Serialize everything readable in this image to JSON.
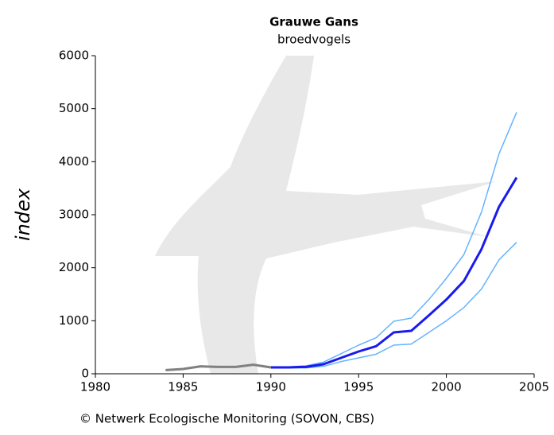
{
  "chart_data": {
    "type": "line",
    "title": "Grauwe Gans",
    "subtitle": "broedvogels",
    "y_label": "index",
    "footer": "© Netwerk Ecologische Monitoring (SOVON, CBS)",
    "x": [
      1984,
      1985,
      1986,
      1987,
      1988,
      1989,
      1990,
      1991,
      1992,
      1993,
      1994,
      1995,
      1996,
      1997,
      1998,
      1999,
      2000,
      2001,
      2002,
      2003,
      2004
    ],
    "series": [
      {
        "color": "#808080",
        "width": 3,
        "values": [
          70,
          90,
          140,
          130,
          130,
          170,
          120,
          null,
          null,
          null,
          null,
          null,
          null,
          null,
          null,
          null,
          null,
          null,
          null,
          null,
          null
        ]
      },
      {
        "color": "#66b3ff",
        "width": 1.5,
        "values": [
          null,
          null,
          null,
          null,
          null,
          null,
          120,
          130,
          150,
          220,
          380,
          540,
          680,
          990,
          1050,
          1400,
          1800,
          2250,
          3050,
          4150,
          4930
        ]
      },
      {
        "color": "#66b3ff",
        "width": 1.5,
        "values": [
          null,
          null,
          null,
          null,
          null,
          null,
          110,
          110,
          110,
          140,
          230,
          300,
          370,
          540,
          560,
          780,
          1000,
          1250,
          1600,
          2150,
          2480
        ]
      },
      {
        "color": "#1a1aee",
        "width": 3,
        "values": [
          null,
          null,
          null,
          null,
          null,
          null,
          120,
          120,
          130,
          180,
          300,
          420,
          520,
          780,
          810,
          1100,
          1400,
          1750,
          2350,
          3150,
          3700
        ]
      }
    ],
    "xlim": [
      1980,
      2005
    ],
    "xticks": [
      1980,
      1985,
      1990,
      1995,
      2000,
      2005
    ],
    "ylim": [
      0,
      6000
    ],
    "yticks": [
      0,
      1000,
      2000,
      3000,
      4000,
      5000,
      6000
    ]
  }
}
